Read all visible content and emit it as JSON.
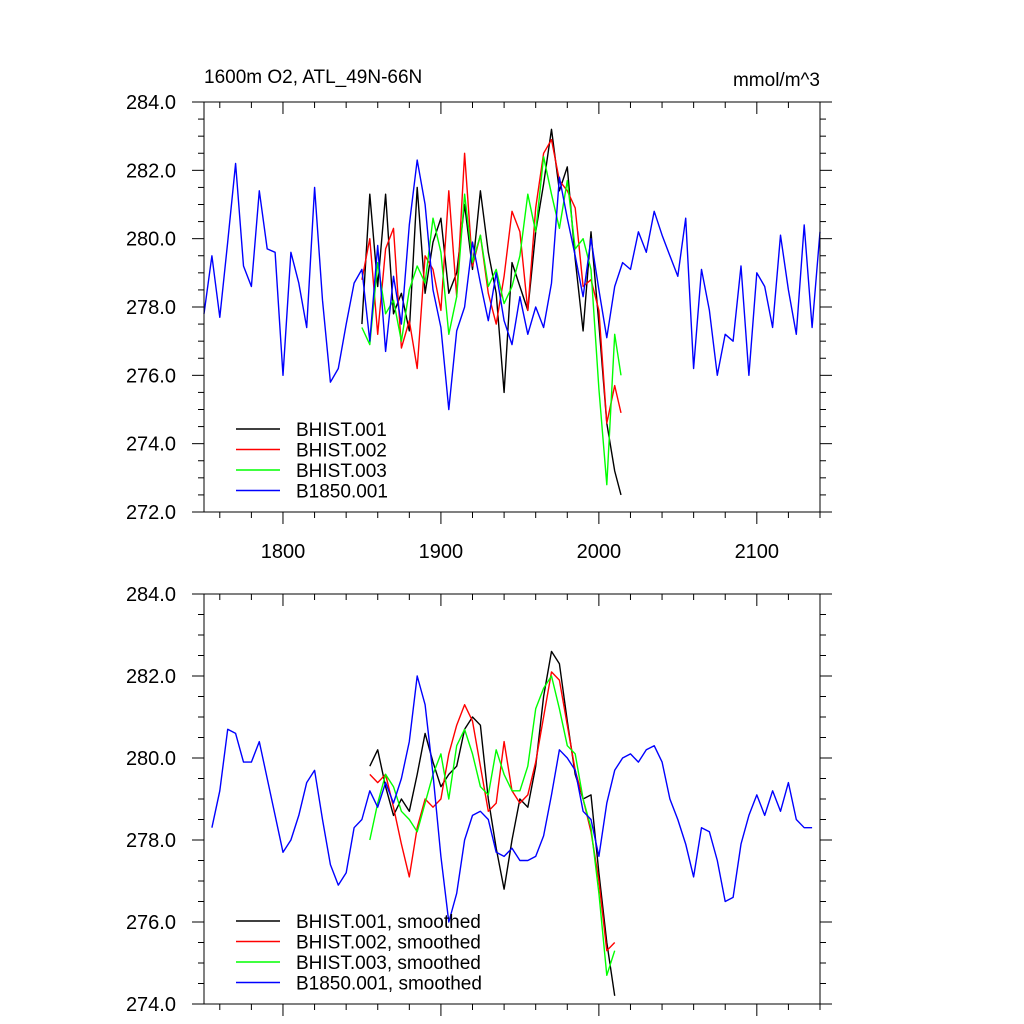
{
  "chart_data": [
    {
      "type": "line",
      "title": "1600m O2, ATL_49N-66N",
      "units": "mmol/m^3",
      "xlim": [
        1750,
        2140
      ],
      "ylim": [
        272,
        284
      ],
      "xticks": [
        1800,
        1900,
        2000,
        2100
      ],
      "xticklabels": [
        "1800",
        "1900",
        "2000",
        "2100"
      ],
      "yticks": [
        272,
        274,
        276,
        278,
        280,
        282,
        284
      ],
      "yticklabels": [
        "272.0",
        "274.0",
        "276.0",
        "278.0",
        "280.0",
        "282.0",
        "284.0"
      ],
      "legend_position": "bottom-left",
      "series": [
        {
          "name": "BHIST.001",
          "color": "#000000",
          "x": [
            1850,
            1855,
            1860,
            1865,
            1870,
            1875,
            1880,
            1885,
            1890,
            1895,
            1900,
            1905,
            1910,
            1915,
            1920,
            1925,
            1930,
            1935,
            1940,
            1945,
            1950,
            1955,
            1960,
            1965,
            1970,
            1975,
            1980,
            1985,
            1990,
            1995,
            2000,
            2005,
            2010,
            2014
          ],
          "y": [
            277.5,
            281.3,
            278.6,
            281.3,
            277.8,
            278.4,
            277.3,
            281.5,
            278.4,
            279.9,
            280.6,
            278.4,
            279.0,
            281.0,
            279.1,
            281.4,
            279.6,
            278.4,
            275.5,
            279.3,
            278.6,
            277.9,
            280.2,
            281.6,
            283.2,
            281.4,
            282.1,
            279.4,
            277.3,
            280.2,
            277.5,
            274.6,
            273.2,
            272.5
          ]
        },
        {
          "name": "BHIST.002",
          "color": "#ff0000",
          "x": [
            1850,
            1855,
            1860,
            1865,
            1870,
            1875,
            1880,
            1885,
            1890,
            1895,
            1900,
            1905,
            1910,
            1915,
            1920,
            1925,
            1930,
            1935,
            1940,
            1945,
            1950,
            1955,
            1960,
            1965,
            1970,
            1975,
            1980,
            1985,
            1990,
            1995,
            2000,
            2005,
            2010,
            2014
          ],
          "y": [
            278.8,
            280.0,
            277.2,
            279.7,
            280.3,
            276.8,
            277.6,
            276.2,
            279.5,
            279.1,
            277.9,
            281.4,
            278.3,
            282.5,
            279.2,
            280.1,
            278.4,
            277.5,
            278.9,
            280.8,
            280.2,
            277.9,
            280.9,
            282.5,
            282.9,
            281.7,
            281.4,
            280.9,
            278.6,
            278.8,
            277.9,
            274.6,
            275.7,
            274.9
          ]
        },
        {
          "name": "BHIST.003",
          "color": "#00ff00",
          "x": [
            1850,
            1855,
            1860,
            1865,
            1870,
            1875,
            1880,
            1885,
            1890,
            1895,
            1900,
            1905,
            1910,
            1915,
            1920,
            1925,
            1930,
            1935,
            1940,
            1945,
            1950,
            1955,
            1960,
            1965,
            1970,
            1975,
            1980,
            1985,
            1990,
            1995,
            2000,
            2005,
            2010,
            2014
          ],
          "y": [
            277.4,
            276.9,
            279.3,
            277.8,
            278.2,
            277.0,
            278.5,
            279.2,
            278.7,
            280.6,
            279.6,
            277.2,
            278.3,
            281.3,
            279.3,
            280.1,
            278.6,
            279.1,
            278.1,
            278.6,
            279.5,
            281.3,
            280.2,
            282.4,
            281.3,
            280.3,
            281.7,
            279.7,
            280.0,
            279.1,
            275.6,
            272.8,
            277.2,
            276.0
          ]
        },
        {
          "name": "B1850.001",
          "color": "#0000ff",
          "x": [
            1750,
            1755,
            1760,
            1765,
            1770,
            1775,
            1780,
            1785,
            1790,
            1795,
            1800,
            1805,
            1810,
            1815,
            1820,
            1825,
            1830,
            1835,
            1840,
            1845,
            1850,
            1855,
            1860,
            1865,
            1870,
            1875,
            1880,
            1885,
            1890,
            1895,
            1900,
            1905,
            1910,
            1915,
            1920,
            1925,
            1930,
            1935,
            1940,
            1945,
            1950,
            1955,
            1960,
            1965,
            1970,
            1975,
            1980,
            1985,
            1990,
            1995,
            2000,
            2005,
            2010,
            2015,
            2020,
            2025,
            2030,
            2035,
            2040,
            2045,
            2050,
            2055,
            2060,
            2065,
            2070,
            2075,
            2080,
            2085,
            2090,
            2095,
            2100,
            2105,
            2110,
            2115,
            2120,
            2125,
            2130,
            2135,
            2140
          ],
          "y": [
            277.8,
            279.5,
            277.7,
            279.9,
            282.2,
            279.2,
            278.6,
            281.4,
            279.7,
            279.6,
            276.0,
            279.6,
            278.7,
            277.4,
            281.5,
            278.2,
            275.8,
            276.2,
            277.5,
            278.7,
            279.1,
            277.0,
            279.8,
            276.7,
            278.9,
            277.5,
            280.4,
            282.3,
            281.0,
            278.5,
            277.4,
            275.0,
            277.3,
            278.0,
            279.9,
            278.7,
            277.6,
            279.0,
            277.6,
            276.9,
            278.3,
            277.2,
            278.0,
            277.4,
            278.7,
            281.8,
            280.6,
            279.5,
            278.3,
            280.0,
            278.5,
            277.1,
            278.6,
            279.3,
            279.1,
            280.2,
            279.6,
            280.8,
            280.1,
            279.5,
            278.9,
            280.6,
            276.2,
            279.1,
            277.9,
            276.0,
            277.2,
            277.0,
            279.2,
            276.0,
            279.0,
            278.6,
            277.4,
            280.1,
            278.5,
            277.2,
            280.4,
            277.4,
            280.2
          ]
        }
      ],
      "legend": [
        "BHIST.001",
        "BHIST.002",
        "BHIST.003",
        "B1850.001"
      ]
    },
    {
      "type": "line",
      "xlim": [
        1750,
        2140
      ],
      "ylim": [
        274,
        284
      ],
      "xticks": [
        1800,
        1900,
        2000,
        2100
      ],
      "yticks": [
        274,
        276,
        278,
        280,
        282,
        284
      ],
      "yticklabels": [
        "274.0",
        "276.0",
        "278.0",
        "280.0",
        "282.0",
        "284.0"
      ],
      "legend_position": "bottom-left",
      "series": [
        {
          "name": "BHIST.001, smoothed",
          "color": "#000000",
          "x": [
            1855,
            1860,
            1865,
            1870,
            1875,
            1880,
            1885,
            1890,
            1895,
            1900,
            1905,
            1910,
            1915,
            1920,
            1925,
            1930,
            1935,
            1940,
            1945,
            1950,
            1955,
            1960,
            1965,
            1970,
            1975,
            1980,
            1985,
            1990,
            1995,
            2000,
            2005,
            2010
          ],
          "y": [
            279.8,
            280.2,
            279.3,
            278.6,
            279.0,
            278.7,
            279.6,
            280.6,
            279.9,
            279.3,
            279.6,
            279.8,
            280.7,
            281.0,
            280.8,
            279.0,
            277.8,
            276.8,
            278.0,
            279.0,
            278.8,
            279.8,
            281.5,
            282.6,
            282.3,
            280.9,
            279.6,
            279.0,
            279.1,
            277.2,
            275.5,
            274.2
          ]
        },
        {
          "name": "BHIST.002, smoothed",
          "color": "#ff0000",
          "x": [
            1855,
            1860,
            1865,
            1870,
            1875,
            1880,
            1885,
            1890,
            1895,
            1900,
            1905,
            1910,
            1915,
            1920,
            1925,
            1930,
            1935,
            1940,
            1945,
            1950,
            1955,
            1960,
            1965,
            1970,
            1975,
            1980,
            1985,
            1990,
            1995,
            2000,
            2005,
            2010
          ],
          "y": [
            279.6,
            279.4,
            279.6,
            278.8,
            277.9,
            277.1,
            278.3,
            279.0,
            278.8,
            279.0,
            280.1,
            280.8,
            281.3,
            280.9,
            279.8,
            278.7,
            278.9,
            280.4,
            279.2,
            278.9,
            279.1,
            279.9,
            281.0,
            282.1,
            281.9,
            280.8,
            279.7,
            279.0,
            278.2,
            277.0,
            275.3,
            275.5
          ]
        },
        {
          "name": "BHIST.003, smoothed",
          "color": "#00ff00",
          "x": [
            1855,
            1860,
            1865,
            1870,
            1875,
            1880,
            1885,
            1890,
            1895,
            1900,
            1905,
            1910,
            1915,
            1920,
            1925,
            1930,
            1935,
            1940,
            1945,
            1950,
            1955,
            1960,
            1965,
            1970,
            1975,
            1980,
            1985,
            1990,
            1995,
            2000,
            2005,
            2010
          ],
          "y": [
            278.0,
            278.9,
            279.6,
            279.3,
            278.7,
            278.5,
            278.2,
            278.9,
            279.6,
            280.1,
            279.0,
            280.3,
            280.7,
            280.1,
            279.3,
            279.1,
            280.2,
            279.6,
            279.2,
            279.2,
            279.8,
            281.2,
            281.7,
            282.0,
            281.2,
            280.3,
            280.1,
            279.0,
            278.3,
            276.7,
            274.7,
            275.3
          ]
        },
        {
          "name": "B1850.001, smoothed",
          "color": "#0000ff",
          "x": [
            1755,
            1760,
            1765,
            1770,
            1775,
            1780,
            1785,
            1790,
            1795,
            1800,
            1805,
            1810,
            1815,
            1820,
            1825,
            1830,
            1835,
            1840,
            1845,
            1850,
            1855,
            1860,
            1865,
            1870,
            1875,
            1880,
            1885,
            1890,
            1895,
            1900,
            1905,
            1910,
            1915,
            1920,
            1925,
            1930,
            1935,
            1940,
            1945,
            1950,
            1955,
            1960,
            1965,
            1970,
            1975,
            1980,
            1985,
            1990,
            1995,
            2000,
            2005,
            2010,
            2015,
            2020,
            2025,
            2030,
            2035,
            2040,
            2045,
            2050,
            2055,
            2060,
            2065,
            2070,
            2075,
            2080,
            2085,
            2090,
            2095,
            2100,
            2105,
            2110,
            2115,
            2120,
            2125,
            2130,
            2135
          ],
          "y": [
            278.3,
            279.2,
            280.7,
            280.6,
            279.9,
            279.9,
            280.4,
            279.5,
            278.6,
            277.7,
            278.0,
            278.6,
            279.4,
            279.7,
            278.5,
            277.4,
            276.9,
            277.2,
            278.3,
            278.5,
            279.2,
            278.8,
            279.4,
            278.9,
            279.5,
            280.4,
            282.0,
            281.3,
            279.6,
            277.6,
            276.0,
            276.7,
            278.0,
            278.6,
            278.7,
            278.5,
            277.7,
            277.6,
            277.8,
            277.5,
            277.5,
            277.6,
            278.1,
            279.1,
            280.2,
            280.0,
            279.7,
            278.7,
            278.5,
            277.6,
            278.9,
            279.7,
            280.0,
            280.1,
            279.9,
            280.2,
            280.3,
            279.9,
            279.0,
            278.5,
            277.9,
            277.1,
            278.3,
            278.2,
            277.5,
            276.5,
            276.6,
            277.9,
            278.6,
            279.1,
            278.6,
            279.2,
            278.7,
            279.4,
            278.5,
            278.3,
            278.3
          ]
        }
      ],
      "legend": [
        "BHIST.001, smoothed",
        "BHIST.002, smoothed",
        "BHIST.003, smoothed",
        "B1850.001, smoothed"
      ]
    }
  ]
}
